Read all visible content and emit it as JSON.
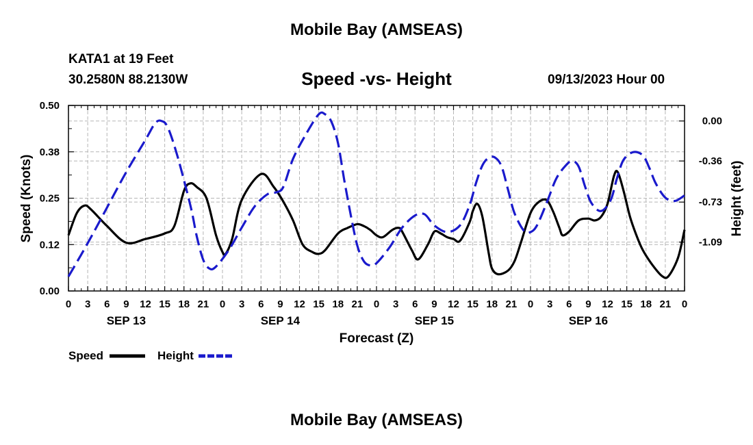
{
  "header": {
    "title": "Mobile Bay (AMSEAS)",
    "station": "KATA1 at 19 Feet",
    "coords": "30.2580N  88.2130W",
    "chart_title": "Speed -vs- Height",
    "datetime": "09/13/2023 Hour 00",
    "bottom_title": "Mobile Bay (AMSEAS)"
  },
  "chart_data": {
    "type": "line",
    "title": "Speed -vs- Height",
    "xlabel": "Forecast (Z)",
    "ylabel": "Speed (Knots)",
    "y2label": "Height (feet)",
    "grid": true,
    "legend_position": "bottom-left",
    "x": [
      0,
      3,
      6,
      9,
      12,
      15,
      18,
      21,
      24,
      27,
      30,
      33,
      36,
      39,
      42,
      45,
      48,
      51,
      54,
      57,
      60,
      63,
      66,
      69,
      72,
      75,
      78,
      81,
      84,
      87,
      90,
      93,
      96
    ],
    "x_tick_labels": [
      "0",
      "3",
      "6",
      "9",
      "12",
      "15",
      "18",
      "21",
      "0",
      "3",
      "6",
      "9",
      "12",
      "15",
      "18",
      "21",
      "0",
      "3",
      "6",
      "9",
      "12",
      "15",
      "18",
      "21",
      "0",
      "3",
      "6",
      "9",
      "12",
      "15",
      "18",
      "21",
      "0"
    ],
    "day_labels": [
      {
        "label": "SEP 13",
        "x": 9
      },
      {
        "label": "SEP 14",
        "x": 33
      },
      {
        "label": "SEP 15",
        "x": 57
      },
      {
        "label": "SEP 16",
        "x": 81
      }
    ],
    "xlim": [
      0,
      96
    ],
    "y_left": {
      "ylim": [
        0,
        0.5
      ],
      "ticks": [
        "0.00",
        "0.12",
        "0.25",
        "0.38",
        "0.50"
      ],
      "tick_values": [
        0,
        0.125,
        0.25,
        0.375,
        0.5
      ]
    },
    "y_right": {
      "ylim": [
        -1.53,
        0.14
      ],
      "ticks": [
        "-1.09",
        "-0.73",
        "-0.36",
        "0.00"
      ],
      "tick_values": [
        -1.09,
        -0.73,
        -0.36,
        0.0
      ]
    },
    "series": [
      {
        "name": "Speed",
        "axis": "left",
        "color": "#000000",
        "dash": "solid",
        "points": [
          [
            0,
            0.15
          ],
          [
            1.3,
            0.21
          ],
          [
            2.5,
            0.23
          ],
          [
            3.5,
            0.22
          ],
          [
            6,
            0.175
          ],
          [
            9,
            0.13
          ],
          [
            12,
            0.14
          ],
          [
            15,
            0.155
          ],
          [
            16.5,
            0.175
          ],
          [
            18,
            0.27
          ],
          [
            19,
            0.29
          ],
          [
            20,
            0.28
          ],
          [
            21.5,
            0.25
          ],
          [
            23,
            0.15
          ],
          [
            24,
            0.105
          ],
          [
            24.5,
            0.1
          ],
          [
            25.5,
            0.14
          ],
          [
            27,
            0.245
          ],
          [
            30,
            0.315
          ],
          [
            32,
            0.28
          ],
          [
            33.5,
            0.24
          ],
          [
            35,
            0.19
          ],
          [
            36.5,
            0.125
          ],
          [
            38,
            0.105
          ],
          [
            39,
            0.1
          ],
          [
            40,
            0.11
          ],
          [
            42,
            0.155
          ],
          [
            43.5,
            0.17
          ],
          [
            45,
            0.18
          ],
          [
            46,
            0.175
          ],
          [
            47,
            0.165
          ],
          [
            48,
            0.15
          ],
          [
            49,
            0.145
          ],
          [
            50.5,
            0.165
          ],
          [
            51.5,
            0.17
          ],
          [
            52,
            0.16
          ],
          [
            53.5,
            0.11
          ],
          [
            54.5,
            0.085
          ],
          [
            56,
            0.125
          ],
          [
            57,
            0.16
          ],
          [
            58,
            0.155
          ],
          [
            59,
            0.145
          ],
          [
            60,
            0.14
          ],
          [
            61,
            0.135
          ],
          [
            62.5,
            0.185
          ],
          [
            63,
            0.215
          ],
          [
            63.7,
            0.235
          ],
          [
            64.5,
            0.2
          ],
          [
            65.5,
            0.1
          ],
          [
            66,
            0.06
          ],
          [
            67,
            0.045
          ],
          [
            68.5,
            0.055
          ],
          [
            69.5,
            0.08
          ],
          [
            70.5,
            0.13
          ],
          [
            72,
            0.21
          ],
          [
            73.3,
            0.24
          ],
          [
            74.5,
            0.245
          ],
          [
            75.5,
            0.215
          ],
          [
            76.5,
            0.17
          ],
          [
            77,
            0.15
          ],
          [
            78,
            0.16
          ],
          [
            79.5,
            0.19
          ],
          [
            81,
            0.195
          ],
          [
            82,
            0.19
          ],
          [
            83,
            0.2
          ],
          [
            84,
            0.235
          ],
          [
            85,
            0.31
          ],
          [
            85.6,
            0.32
          ],
          [
            86.5,
            0.27
          ],
          [
            87.5,
            0.2
          ],
          [
            88.5,
            0.15
          ],
          [
            89.5,
            0.11
          ],
          [
            91,
            0.07
          ],
          [
            92.5,
            0.04
          ],
          [
            93.5,
            0.04
          ],
          [
            95,
            0.09
          ],
          [
            96,
            0.165
          ]
        ]
      },
      {
        "name": "Height",
        "axis": "right",
        "color": "#1a1acc",
        "dash": "dashed",
        "points": [
          [
            0,
            -1.4
          ],
          [
            3,
            -1.1
          ],
          [
            6,
            -0.78
          ],
          [
            9,
            -0.46
          ],
          [
            12,
            -0.17
          ],
          [
            13.5,
            -0.02
          ],
          [
            14.5,
            0.0
          ],
          [
            15.5,
            -0.06
          ],
          [
            17,
            -0.32
          ],
          [
            19,
            -0.76
          ],
          [
            20,
            -1.04
          ],
          [
            21,
            -1.25
          ],
          [
            22,
            -1.33
          ],
          [
            23,
            -1.31
          ],
          [
            25,
            -1.16
          ],
          [
            27,
            -0.96
          ],
          [
            29,
            -0.77
          ],
          [
            31,
            -0.66
          ],
          [
            32.5,
            -0.64
          ],
          [
            33.5,
            -0.59
          ],
          [
            35,
            -0.34
          ],
          [
            37,
            -0.12
          ],
          [
            39,
            0.06
          ],
          [
            40,
            0.06
          ],
          [
            41,
            -0.01
          ],
          [
            42,
            -0.2
          ],
          [
            43,
            -0.54
          ],
          [
            44,
            -0.85
          ],
          [
            45,
            -1.12
          ],
          [
            46,
            -1.26
          ],
          [
            47,
            -1.3
          ],
          [
            48,
            -1.28
          ],
          [
            50,
            -1.14
          ],
          [
            52,
            -0.96
          ],
          [
            54,
            -0.85
          ],
          [
            55.5,
            -0.84
          ],
          [
            57,
            -0.94
          ],
          [
            59,
            -1.0
          ],
          [
            61,
            -0.94
          ],
          [
            62.5,
            -0.76
          ],
          [
            63.5,
            -0.56
          ],
          [
            64.5,
            -0.4
          ],
          [
            65.5,
            -0.33
          ],
          [
            66.5,
            -0.33
          ],
          [
            67.5,
            -0.41
          ],
          [
            68.5,
            -0.62
          ],
          [
            69.5,
            -0.83
          ],
          [
            71,
            -0.99
          ],
          [
            72,
            -1.0
          ],
          [
            73,
            -0.94
          ],
          [
            74.5,
            -0.74
          ],
          [
            76,
            -0.52
          ],
          [
            77.5,
            -0.4
          ],
          [
            78.5,
            -0.36
          ],
          [
            79.5,
            -0.41
          ],
          [
            80.5,
            -0.59
          ],
          [
            81.5,
            -0.74
          ],
          [
            83,
            -0.81
          ],
          [
            84.5,
            -0.71
          ],
          [
            85.5,
            -0.51
          ],
          [
            86.5,
            -0.35
          ],
          [
            88,
            -0.28
          ],
          [
            89.5,
            -0.31
          ],
          [
            90.5,
            -0.42
          ],
          [
            91.5,
            -0.56
          ],
          [
            93,
            -0.69
          ],
          [
            94.5,
            -0.72
          ],
          [
            96,
            -0.67
          ]
        ]
      }
    ]
  }
}
